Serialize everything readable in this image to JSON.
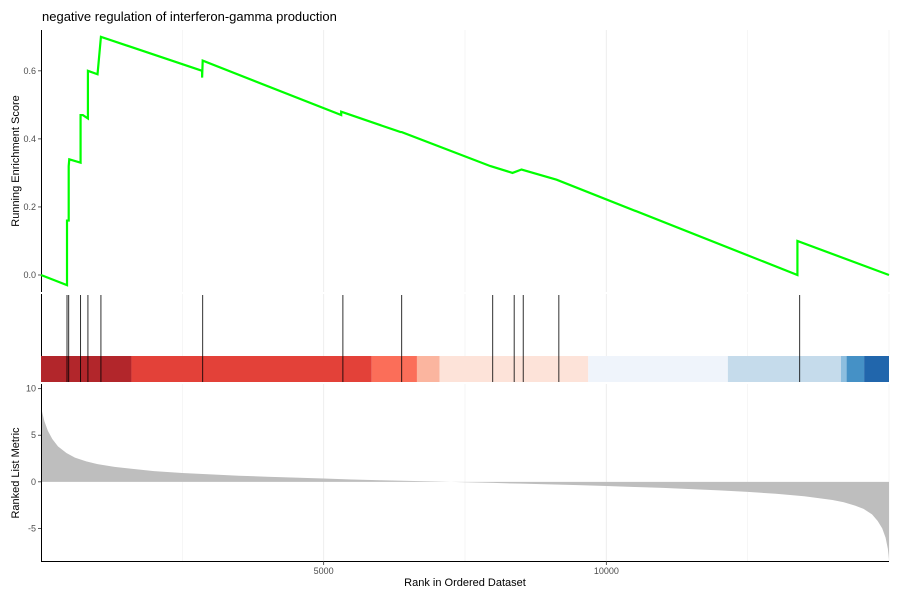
{
  "chart_data": {
    "type": "line",
    "title": "negative regulation of interferon-gamma production",
    "xlabel": "Rank in Ordered Dataset",
    "x_ticks": [
      5000,
      10000
    ],
    "xlim": [
      0,
      15000
    ],
    "grid": true,
    "legend": "none",
    "panels": [
      {
        "name": "enrichment",
        "ylabel": "Running Enrichment Score",
        "ylim": [
          -0.05,
          0.72
        ],
        "y_ticks": [
          0.0,
          0.2,
          0.4,
          0.6
        ],
        "y_tick_labels": [
          "0.0",
          "0.2",
          "0.4",
          "0.6"
        ],
        "color": "#00ff00",
        "x": [
          0,
          460,
          460,
          490,
          490,
          500,
          500,
          700,
          700,
          740,
          740,
          830,
          830,
          1000,
          1000,
          1060,
          1060,
          2850,
          2850,
          2860,
          2860,
          5310,
          5310,
          6360,
          6360,
          6380,
          6380,
          7950,
          7950,
          8340,
          8340,
          8500,
          8500,
          9120,
          9120,
          13380,
          13380,
          15000
        ],
        "y": [
          0.0,
          -0.03,
          0.16,
          0.16,
          0.32,
          0.34,
          0.34,
          0.33,
          0.47,
          0.47,
          0.47,
          0.46,
          0.6,
          0.59,
          0.59,
          0.7,
          0.7,
          0.6,
          0.58,
          0.63,
          0.63,
          0.47,
          0.48,
          0.42,
          0.42,
          0.42,
          0.42,
          0.32,
          0.32,
          0.3,
          0.3,
          0.31,
          0.31,
          0.28,
          0.28,
          0.0,
          0.1,
          0.0
        ]
      },
      {
        "name": "hits",
        "positions": [
          460,
          490,
          700,
          830,
          1060,
          2860,
          5340,
          6380,
          7990,
          8370,
          8530,
          9160,
          13420
        ],
        "color_bands": [
          {
            "from": 0,
            "to": 1600,
            "color": "#b2262b"
          },
          {
            "from": 1600,
            "to": 5850,
            "color": "#e34139"
          },
          {
            "from": 5850,
            "to": 6650,
            "color": "#fb6e59"
          },
          {
            "from": 6650,
            "to": 7050,
            "color": "#fbb59f"
          },
          {
            "from": 7050,
            "to": 9680,
            "color": "#fde3d9"
          },
          {
            "from": 9680,
            "to": 12150,
            "color": "#eff4fb"
          },
          {
            "from": 12150,
            "to": 14150,
            "color": "#c5dbeb"
          },
          {
            "from": 14150,
            "to": 14250,
            "color": "#8dbedf"
          },
          {
            "from": 14250,
            "to": 14560,
            "color": "#4591c6"
          },
          {
            "from": 14560,
            "to": 15000,
            "color": "#2166ac"
          }
        ]
      },
      {
        "name": "ranked",
        "ylabel": "Ranked List Metric",
        "ylim": [
          -8.5,
          10.5
        ],
        "y_ticks": [
          10,
          5,
          0,
          -5
        ],
        "y_tick_labels": [
          "10",
          "5",
          "0",
          "-5"
        ],
        "fill": "#bebebe",
        "x": [
          0,
          20,
          60,
          120,
          200,
          300,
          450,
          600,
          800,
          1000,
          1300,
          1600,
          2000,
          2500,
          3000,
          3500,
          4000,
          4500,
          5000,
          5500,
          6000,
          6500,
          7000,
          7500,
          8000,
          8500,
          9000,
          9500,
          10000,
          10500,
          11000,
          11500,
          12000,
          12500,
          13000,
          13500,
          14000,
          14200,
          14400,
          14550,
          14700,
          14800,
          14880,
          14940,
          14980,
          15000
        ],
        "y": [
          8.5,
          7.5,
          6.5,
          5.5,
          4.6,
          3.8,
          3.1,
          2.6,
          2.2,
          1.9,
          1.6,
          1.4,
          1.15,
          0.95,
          0.8,
          0.65,
          0.55,
          0.45,
          0.35,
          0.25,
          0.17,
          0.1,
          0.03,
          -0.05,
          -0.12,
          -0.2,
          -0.28,
          -0.36,
          -0.45,
          -0.55,
          -0.65,
          -0.78,
          -0.92,
          -1.08,
          -1.28,
          -1.55,
          -1.95,
          -2.2,
          -2.55,
          -2.9,
          -3.5,
          -4.2,
          -5.0,
          -6.0,
          -7.2,
          -8.3
        ]
      }
    ]
  }
}
